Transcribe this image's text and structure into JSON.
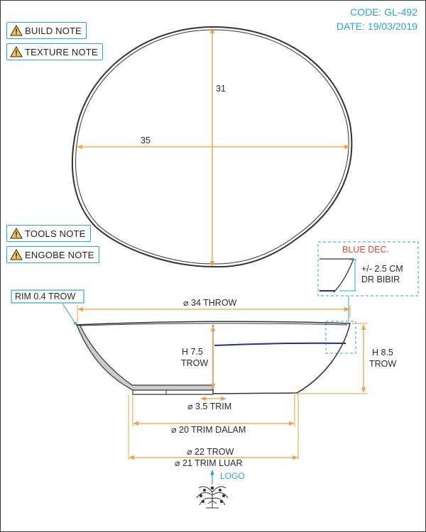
{
  "header": {
    "code": "CODE: GL-492",
    "date": "DATE: 19/03/2019"
  },
  "notes": [
    {
      "label": "BUILD NOTE",
      "icon": "warning-icon"
    },
    {
      "label": "TEXTURE NOTE",
      "icon": "warning-icon"
    },
    {
      "label": "TOOLS NOTE",
      "icon": "warning-icon"
    },
    {
      "label": "ENGOBE NOTE",
      "icon": "warning-icon"
    }
  ],
  "top_view": {
    "length": "35",
    "width": "31"
  },
  "detail": {
    "title": "BLUE DEC.",
    "line1": "+/- 2.5 CM",
    "line2": "DR BIBIR"
  },
  "section": {
    "rim_label": "RIM 0.4 TROW",
    "diameter_throw": "⌀ 34 THROW",
    "inner_height_line1": "H 7.5",
    "inner_height_line2": "TROW",
    "outer_height_line1": "H 8.5",
    "outer_height_line2": "TROW",
    "trim_small": "⌀ 3.5 TRIM",
    "trim_inner": "⌀ 20 TRIM DALAM",
    "foot_throw": "⌀ 22 TROW",
    "trim_outer": "⌀ 21 TRIM LUAR",
    "logo_label": "LOGO"
  },
  "colors": {
    "dimension": "#f0a040",
    "accent": "#29a3d6",
    "decoration": "#1f2fa0",
    "detail_title": "#e0453a",
    "outline": "#333333",
    "section_fill": "#cccccc"
  }
}
